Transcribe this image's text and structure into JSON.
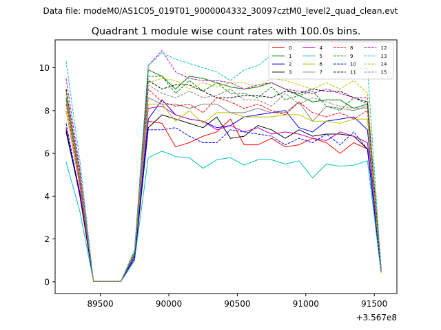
{
  "figure": {
    "suptitle": "Data file: modeM0/AS1C05_019T01_9000004332_30097cztM0_level2_quad_clean.evt"
  },
  "chart_data": {
    "type": "line",
    "title": "Quadrant 1 module wise count rates with 100.0s bins.",
    "xlabel": "",
    "ylabel": "",
    "x_offset_label": "+3.567e8",
    "xlim": [
      89170,
      91665
    ],
    "ylim": [
      -0.55,
      11.3
    ],
    "xticks": [
      89500,
      90000,
      90500,
      91000,
      91500
    ],
    "xtick_labels": [
      "89500",
      "90000",
      "90500",
      "91000",
      "91500"
    ],
    "yticks": [
      0,
      2,
      4,
      6,
      8,
      10
    ],
    "ytick_labels": [
      "0",
      "2",
      "4",
      "6",
      "8",
      "10"
    ],
    "grid": false,
    "legend_location": "upper right",
    "legend_columns": 4,
    "x": [
      89250,
      89350,
      89450,
      89550,
      89650,
      89750,
      89850,
      89950,
      90050,
      90150,
      90250,
      90350,
      90450,
      90550,
      90650,
      90750,
      90850,
      90950,
      91050,
      91150,
      91250,
      91350,
      91450,
      91550
    ],
    "series": [
      {
        "name": "0",
        "color": "#ff0000",
        "dash": "solid",
        "values": [
          7.2,
          4.0,
          0.02,
          0.02,
          0.02,
          1.2,
          7.5,
          7.4,
          6.3,
          6.5,
          6.8,
          7.0,
          7.6,
          6.4,
          6.4,
          6.7,
          6.3,
          6.4,
          6.7,
          6.5,
          6.0,
          6.5,
          6.2,
          0.6
        ]
      },
      {
        "name": "1",
        "color": "#008000",
        "dash": "solid",
        "values": [
          8.6,
          5.0,
          0.02,
          0.02,
          0.02,
          1.3,
          9.9,
          9.6,
          9.0,
          9.6,
          9.5,
          9.3,
          9.1,
          9.0,
          9.1,
          9.3,
          9.0,
          8.7,
          8.4,
          8.5,
          8.5,
          8.1,
          8.3,
          0.6
        ]
      },
      {
        "name": "2",
        "color": "#0000ff",
        "dash": "solid",
        "values": [
          7.1,
          4.2,
          0.02,
          0.02,
          0.02,
          1.1,
          7.6,
          8.5,
          7.8,
          7.6,
          7.5,
          7.2,
          7.3,
          7.7,
          7.8,
          7.9,
          8.0,
          7.2,
          7.0,
          7.5,
          7.6,
          7.7,
          7.1,
          0.5
        ]
      },
      {
        "name": "3",
        "color": "#000000",
        "dash": "solid",
        "values": [
          7.0,
          4.1,
          0.02,
          0.02,
          0.02,
          1.0,
          7.2,
          7.8,
          7.6,
          7.4,
          7.2,
          7.7,
          6.7,
          6.8,
          7.3,
          7.1,
          6.7,
          7.1,
          6.8,
          6.9,
          6.9,
          6.8,
          6.2,
          0.5
        ]
      },
      {
        "name": "4",
        "color": "#bf00bf",
        "dash": "solid",
        "values": [
          8.0,
          4.5,
          0.02,
          0.02,
          0.02,
          1.2,
          8.1,
          8.2,
          7.8,
          7.6,
          7.5,
          7.1,
          7.3,
          7.0,
          7.2,
          6.9,
          7.0,
          6.9,
          6.7,
          6.6,
          7.0,
          6.8,
          6.5,
          0.5
        ]
      },
      {
        "name": "5",
        "color": "#00bfbf",
        "dash": "solid",
        "values": [
          5.6,
          3.3,
          0.02,
          0.02,
          0.02,
          1.0,
          5.8,
          6.1,
          5.85,
          5.8,
          5.3,
          5.7,
          5.8,
          5.45,
          5.7,
          5.7,
          5.5,
          5.65,
          4.85,
          5.5,
          5.4,
          5.45,
          5.65,
          0.4
        ]
      },
      {
        "name": "6",
        "color": "#bfbf00",
        "dash": "solid",
        "values": [
          8.0,
          4.6,
          0.02,
          0.02,
          0.02,
          1.3,
          8.3,
          8.3,
          7.5,
          8.0,
          7.4,
          7.9,
          7.9,
          7.7,
          7.7,
          7.7,
          7.8,
          7.8,
          7.5,
          7.5,
          7.4,
          7.6,
          7.6,
          0.4
        ]
      },
      {
        "name": "7",
        "color": "#808080",
        "dash": "solid",
        "values": [
          8.5,
          4.8,
          0.02,
          0.02,
          0.02,
          1.4,
          8.6,
          8.3,
          8.3,
          8.1,
          8.3,
          8.3,
          7.9,
          7.9,
          8.1,
          7.9,
          7.9,
          8.4,
          7.5,
          8.2,
          8.1,
          8.0,
          8.2,
          0.6
        ]
      },
      {
        "name": "8",
        "color": "#ff0000",
        "dash": "dashed",
        "values": [
          8.3,
          4.7,
          0.02,
          0.02,
          0.02,
          1.3,
          9.0,
          8.4,
          8.2,
          8.3,
          7.9,
          8.6,
          8.4,
          8.1,
          8.3,
          8.0,
          7.8,
          8.4,
          7.9,
          7.7,
          7.9,
          7.6,
          8.0,
          0.6
        ]
      },
      {
        "name": "9",
        "color": "#008000",
        "dash": "dashed",
        "values": [
          9.0,
          5.0,
          0.02,
          0.02,
          0.02,
          1.3,
          9.6,
          9.6,
          8.8,
          9.4,
          8.9,
          9.3,
          8.8,
          8.8,
          8.6,
          9.1,
          8.5,
          8.7,
          8.9,
          8.2,
          8.0,
          8.6,
          8.3,
          0.6
        ]
      },
      {
        "name": "10",
        "color": "#0000ff",
        "dash": "dashed",
        "values": [
          7.4,
          4.1,
          0.02,
          0.02,
          0.02,
          1.1,
          7.1,
          7.1,
          7.2,
          6.8,
          6.5,
          6.5,
          7.1,
          7.0,
          6.9,
          6.8,
          6.4,
          6.7,
          6.5,
          6.9,
          6.4,
          7.0,
          6.2,
          0.5
        ]
      },
      {
        "name": "11",
        "color": "#000000",
        "dash": "dashed",
        "values": [
          9.0,
          5.1,
          0.02,
          0.02,
          0.02,
          1.4,
          9.4,
          9.0,
          9.2,
          9.2,
          8.9,
          8.6,
          8.6,
          8.7,
          8.7,
          8.6,
          8.9,
          8.8,
          9.0,
          8.9,
          8.9,
          8.6,
          8.4,
          0.6
        ]
      },
      {
        "name": "12",
        "color": "#bf00bf",
        "dash": "dashed",
        "values": [
          9.5,
          5.3,
          0.02,
          0.02,
          0.02,
          1.4,
          10.1,
          10.8,
          9.8,
          9.5,
          9.4,
          9.4,
          9.3,
          9.0,
          9.2,
          9.3,
          9.0,
          8.9,
          8.8,
          9.0,
          8.8,
          8.6,
          8.6,
          0.6
        ]
      },
      {
        "name": "13",
        "color": "#00bfbf",
        "dash": "dashed",
        "values": [
          10.3,
          5.7,
          0.02,
          0.02,
          0.02,
          1.5,
          10.1,
          10.7,
          10.4,
          10.2,
          10.0,
          9.8,
          9.4,
          9.9,
          10.1,
          10.6,
          10.5,
          10.1,
          10.4,
          9.9,
          10.4,
          9.9,
          10.0,
          0.6
        ]
      },
      {
        "name": "14",
        "color": "#bfbf00",
        "dash": "dashed",
        "values": [
          8.8,
          5.0,
          0.02,
          0.02,
          0.02,
          1.4,
          9.3,
          9.5,
          9.4,
          9.0,
          9.3,
          9.1,
          9.3,
          9.3,
          9.1,
          9.5,
          9.4,
          9.2,
          9.0,
          9.3,
          9.0,
          9.4,
          8.8,
          0.6
        ]
      },
      {
        "name": "15",
        "color": "#808080",
        "dash": "dashed",
        "values": [
          8.9,
          5.0,
          0.02,
          0.02,
          0.02,
          1.4,
          9.2,
          8.8,
          8.6,
          8.9,
          8.6,
          8.7,
          9.0,
          8.5,
          8.5,
          8.2,
          8.8,
          8.3,
          8.6,
          8.4,
          8.2,
          8.1,
          8.1,
          0.6
        ]
      }
    ]
  }
}
